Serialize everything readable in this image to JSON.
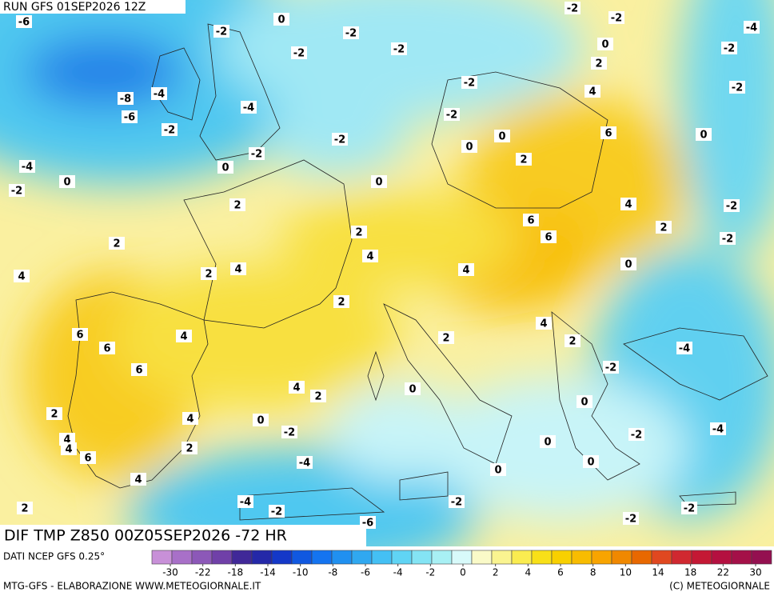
{
  "header": {
    "run": "RUN GFS 01SEP2026 12Z"
  },
  "map": {
    "field_title": "DIF TMP Z850 00Z05SEP2026 -72 HR",
    "contour_labels": [
      -6,
      0,
      -2,
      -2,
      -2,
      -2,
      -2,
      -2,
      -4,
      0,
      -2,
      2,
      -2,
      -2,
      4,
      -4,
      -8,
      -6,
      -4,
      -2,
      -2,
      6,
      0,
      0,
      -2,
      0,
      -2,
      -4,
      0,
      2,
      0,
      -2,
      0,
      2,
      4,
      -2,
      6,
      2,
      2,
      6,
      -2,
      2,
      4,
      4,
      2,
      0,
      4,
      4,
      2,
      6,
      4,
      4,
      6,
      2,
      2,
      -4,
      6,
      -2,
      4,
      2,
      0,
      0,
      2,
      4,
      0,
      -2,
      -4,
      4,
      4,
      -2,
      2,
      6,
      0,
      -4,
      0,
      0,
      4,
      -4,
      -2,
      -2,
      -2,
      2,
      -2,
      -6
    ]
  },
  "colorbar": {
    "source": "DATI NCEP GFS 0.25°",
    "ticks": [
      -30,
      -22,
      -18,
      -14,
      -10,
      -8,
      -6,
      -4,
      -2,
      0,
      2,
      4,
      6,
      8,
      10,
      14,
      18,
      22,
      30
    ],
    "colors": [
      "#c890d8",
      "#a870c8",
      "#8c58b8",
      "#7040a8",
      "#402898",
      "#2428a8",
      "#1438c8",
      "#1058e0",
      "#1474f0",
      "#2090f0",
      "#30a8f0",
      "#44c0f4",
      "#60d4f4",
      "#84e4f4",
      "#a8f0f4",
      "#d8fafa",
      "#fafac8",
      "#faf490",
      "#faec50",
      "#f8e018",
      "#f8d000",
      "#f8bc00",
      "#f8a400",
      "#f08800",
      "#e86800",
      "#e04820",
      "#d02830",
      "#c41834",
      "#b41040",
      "#a41048",
      "#941050"
    ]
  },
  "footer": {
    "left": "MTG-GFS - ELABORAZIONE WWW.METEOGIORNALE.IT",
    "right": "(C) METEOGIORNALE"
  }
}
